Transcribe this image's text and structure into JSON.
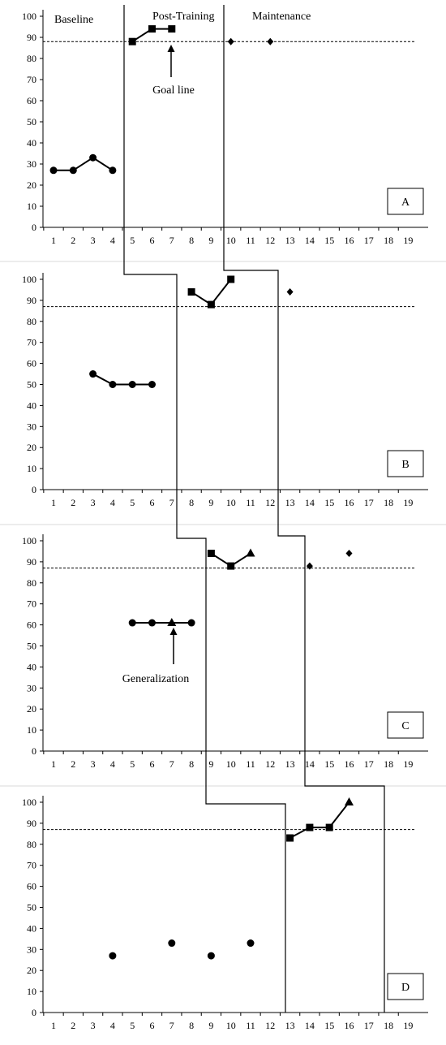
{
  "chart_data": [
    {
      "type": "line",
      "panel": "A",
      "x": [
        1,
        2,
        3,
        4,
        5,
        6,
        7,
        8,
        9,
        10,
        11,
        12,
        13,
        14,
        15,
        16,
        17,
        18,
        19
      ],
      "ylim": [
        0,
        100
      ],
      "y_ticks": [
        0,
        10,
        20,
        30,
        40,
        50,
        60,
        70,
        80,
        90,
        100
      ],
      "goal_line": 88,
      "phase_labels": [
        "Baseline",
        "Post-Training",
        "Maintenance"
      ],
      "annotations": [
        "Goal line"
      ],
      "series": [
        {
          "marker": "circle",
          "connected": true,
          "points": [
            [
              1,
              27
            ],
            [
              2,
              27
            ],
            [
              3,
              33
            ],
            [
              4,
              27
            ]
          ]
        },
        {
          "marker": "square",
          "connected": true,
          "points": [
            [
              5,
              88
            ],
            [
              6,
              94
            ],
            [
              7,
              94
            ]
          ]
        },
        {
          "marker": "diamond",
          "connected": false,
          "points": [
            [
              10,
              88
            ],
            [
              12,
              88
            ]
          ]
        }
      ]
    },
    {
      "type": "line",
      "panel": "B",
      "x": [
        1,
        2,
        3,
        4,
        5,
        6,
        7,
        8,
        9,
        10,
        11,
        12,
        13,
        14,
        15,
        16,
        17,
        18,
        19
      ],
      "ylim": [
        0,
        100
      ],
      "y_ticks": [
        0,
        10,
        20,
        30,
        40,
        50,
        60,
        70,
        80,
        90,
        100
      ],
      "goal_line": 87,
      "series": [
        {
          "marker": "circle",
          "connected": true,
          "points": [
            [
              3,
              55
            ],
            [
              4,
              50
            ],
            [
              5,
              50
            ],
            [
              6,
              50
            ]
          ]
        },
        {
          "marker": "square",
          "connected": true,
          "points": [
            [
              8,
              94
            ],
            [
              9,
              88
            ],
            [
              10,
              100
            ]
          ]
        },
        {
          "marker": "diamond",
          "connected": false,
          "points": [
            [
              13,
              94
            ]
          ]
        }
      ]
    },
    {
      "type": "line",
      "panel": "C",
      "x": [
        1,
        2,
        3,
        4,
        5,
        6,
        7,
        8,
        9,
        10,
        11,
        12,
        13,
        14,
        15,
        16,
        17,
        18,
        19
      ],
      "ylim": [
        0,
        100
      ],
      "y_ticks": [
        0,
        10,
        20,
        30,
        40,
        50,
        60,
        70,
        80,
        90,
        100
      ],
      "goal_line": 87,
      "annotations": [
        "Generalization"
      ],
      "series": [
        {
          "marker": "circle",
          "connected": true,
          "points": [
            [
              5,
              61
            ],
            [
              6,
              61
            ],
            [
              7,
              61
            ],
            [
              8,
              61
            ]
          ],
          "markers": [
            "circle",
            "circle",
            "triangle",
            "circle"
          ]
        },
        {
          "marker": "square",
          "connected": true,
          "points": [
            [
              9,
              94
            ],
            [
              10,
              88
            ],
            [
              11,
              94
            ]
          ],
          "markers": [
            "square",
            "square",
            "triangle"
          ]
        },
        {
          "marker": "diamond",
          "connected": false,
          "points": [
            [
              14,
              88
            ],
            [
              16,
              94
            ]
          ]
        }
      ]
    },
    {
      "type": "line",
      "panel": "D",
      "x": [
        1,
        2,
        3,
        4,
        5,
        6,
        7,
        8,
        9,
        10,
        11,
        12,
        13,
        14,
        15,
        16,
        17,
        18,
        19
      ],
      "ylim": [
        0,
        100
      ],
      "y_ticks": [
        0,
        10,
        20,
        30,
        40,
        50,
        60,
        70,
        80,
        90,
        100
      ],
      "goal_line": 87,
      "series": [
        {
          "marker": "circle",
          "connected": false,
          "points": [
            [
              4,
              27
            ],
            [
              7,
              33
            ],
            [
              9,
              27
            ],
            [
              11,
              33
            ]
          ]
        },
        {
          "marker": "square",
          "connected": true,
          "points": [
            [
              13,
              83
            ],
            [
              14,
              88
            ],
            [
              15,
              88
            ],
            [
              16,
              100
            ]
          ],
          "markers": [
            "square",
            "square",
            "square",
            "triangle"
          ]
        }
      ]
    }
  ]
}
